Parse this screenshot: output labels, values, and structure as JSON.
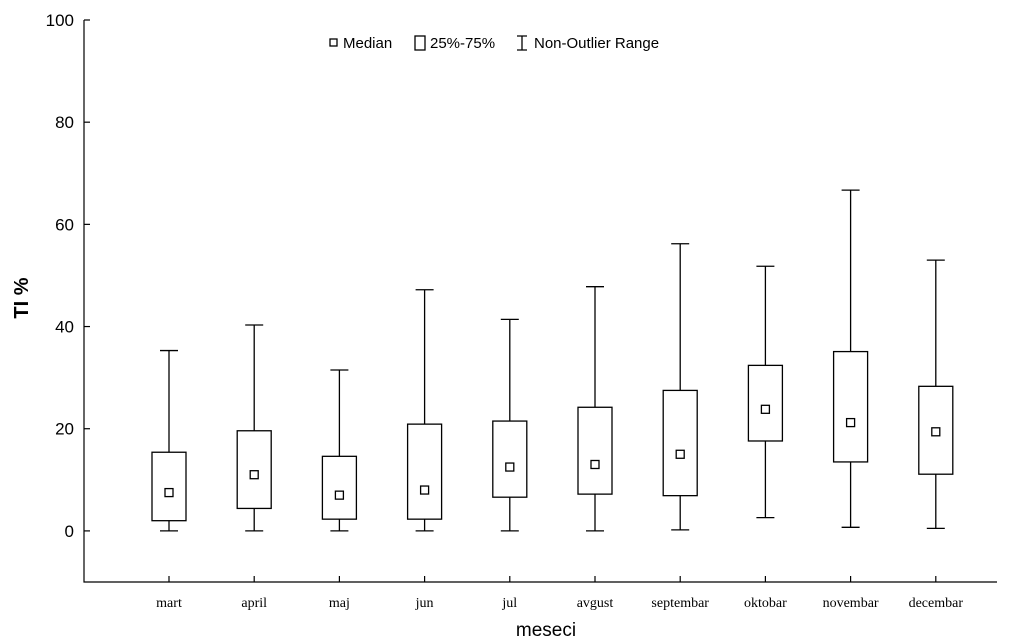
{
  "chart_data": {
    "type": "box",
    "ylabel": "TI %",
    "xlabel": "meseci",
    "ylim": [
      -10,
      100
    ],
    "yticks": [
      0,
      20,
      40,
      60,
      80,
      100
    ],
    "grid": false,
    "legend_position": "top-center",
    "legend": {
      "median": "Median",
      "box": "25%-75%",
      "range": "Non-Outlier Range"
    },
    "categories": [
      "mart",
      "april",
      "maj",
      "jun",
      "jul",
      "avgust",
      "septembar",
      "oktobar",
      "novembar",
      "decembar"
    ],
    "boxes": [
      {
        "min": 0.0,
        "q1": 2.0,
        "median": 7.5,
        "q3": 15.4,
        "max": 35.3
      },
      {
        "min": 0.0,
        "q1": 4.4,
        "median": 11.0,
        "q3": 19.6,
        "max": 40.3
      },
      {
        "min": 0.0,
        "q1": 2.3,
        "median": 7.0,
        "q3": 14.6,
        "max": 31.5
      },
      {
        "min": 0.0,
        "q1": 2.3,
        "median": 8.0,
        "q3": 20.9,
        "max": 47.2
      },
      {
        "min": 0.0,
        "q1": 6.6,
        "median": 12.5,
        "q3": 21.5,
        "max": 41.4
      },
      {
        "min": 0.0,
        "q1": 7.2,
        "median": 13.0,
        "q3": 24.2,
        "max": 47.8
      },
      {
        "min": 0.2,
        "q1": 6.9,
        "median": 15.0,
        "q3": 27.5,
        "max": 56.2
      },
      {
        "min": 2.6,
        "q1": 17.6,
        "median": 23.8,
        "q3": 32.4,
        "max": 51.8
      },
      {
        "min": 0.7,
        "q1": 13.5,
        "median": 21.2,
        "q3": 35.1,
        "max": 66.7
      },
      {
        "min": 0.5,
        "q1": 11.1,
        "median": 19.4,
        "q3": 28.3,
        "max": 53.0
      }
    ]
  }
}
